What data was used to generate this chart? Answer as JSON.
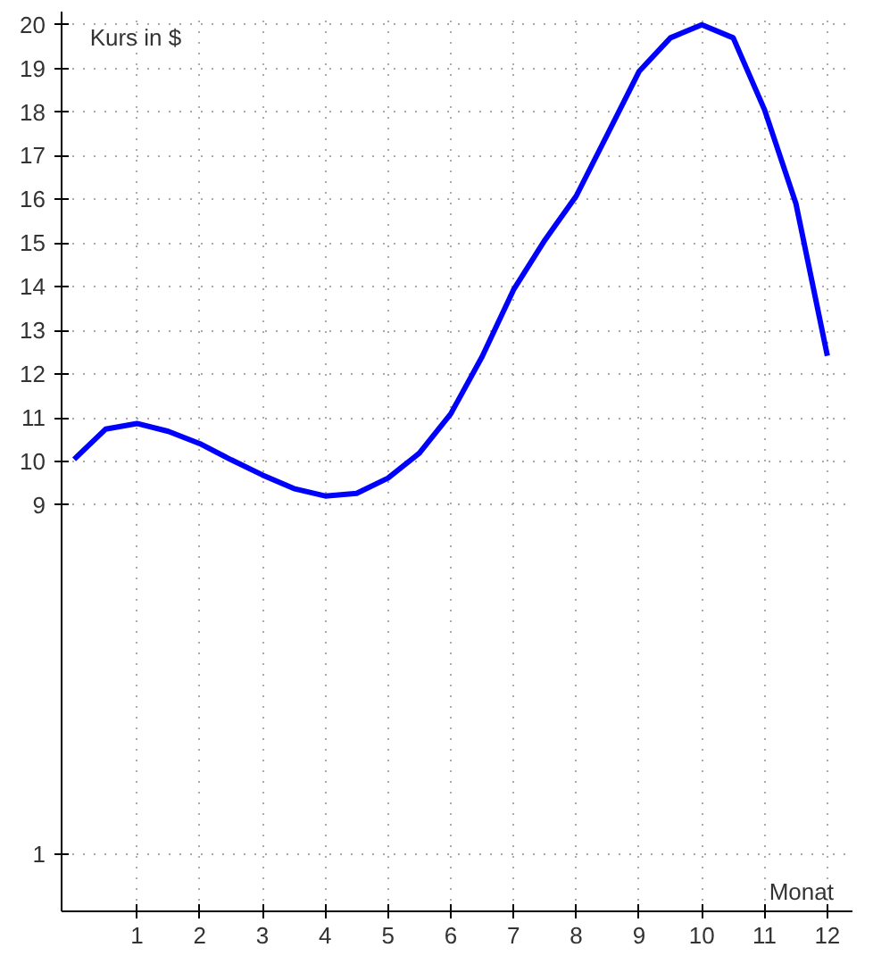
{
  "chart_data": {
    "type": "line",
    "ylabel": "Kurs in $",
    "xlabel": "Monat",
    "x": [
      0,
      0.5,
      1,
      1.5,
      2,
      2.5,
      3,
      3.5,
      4,
      4.5,
      5,
      5.5,
      6,
      6.5,
      7,
      7.5,
      8,
      8.5,
      9,
      9.5,
      10,
      10.5,
      11,
      11.5,
      12
    ],
    "series": [
      {
        "color": "#0000ff",
        "values": [
          10.05,
          10.74,
          10.87,
          10.69,
          10.41,
          10.04,
          9.69,
          9.38,
          9.21,
          9.27,
          9.62,
          10.19,
          11.09,
          12.4,
          13.93,
          15.07,
          16.08,
          17.5,
          18.93,
          19.7,
          20.0,
          19.7,
          18.05,
          15.9,
          12.42
        ]
      }
    ],
    "xlim": [
      -0.2,
      12.4
    ],
    "xticks": [
      1,
      2,
      3,
      4,
      5,
      6,
      7,
      8,
      9,
      10,
      11,
      12
    ],
    "ylim": [
      -0.3,
      20.3
    ],
    "yticks": [
      1,
      9,
      10,
      11,
      12,
      13,
      14,
      15,
      16,
      17,
      18,
      19,
      20
    ],
    "grid": true,
    "line_style": "solid"
  }
}
